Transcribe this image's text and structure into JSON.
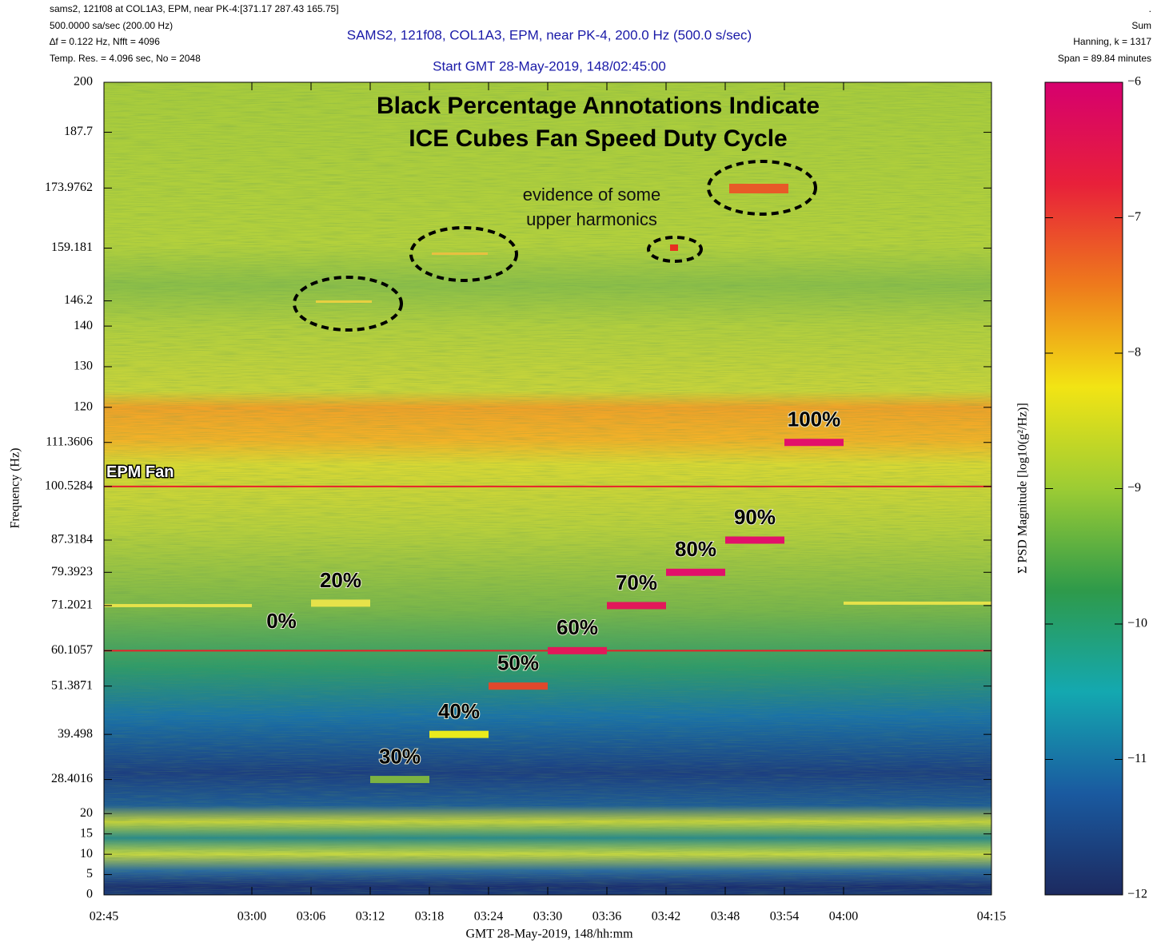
{
  "chart_data": {
    "type": "spectrogram",
    "header_left": [
      "sams2, 121f08 at COL1A3, EPM, near PK-4:[371.17 287.43 165.75]",
      "500.0000 sa/sec (200.00 Hz)",
      "∆f = 0.122 Hz,  Nfft = 4096",
      "Temp. Res. = 4.096 sec, No = 2048"
    ],
    "title": "SAMS2, 121f08, COL1A3, EPM, near PK-4, 200.0 Hz (500.0 s/sec)",
    "subtitle": "Start GMT 28-May-2019, 148/02:45:00",
    "header_right": [
      ".",
      "Sum",
      "Hanning, k = 1317",
      "Span = 89.84 minutes"
    ],
    "xlabel": "GMT 28-May-2019, 148/hh:mm",
    "ylabel": "Frequency (Hz)",
    "xlim": [
      165,
      255
    ],
    "xticks": [
      {
        "value": 165,
        "label": "02:45"
      },
      {
        "value": 180,
        "label": "03:00"
      },
      {
        "value": 186,
        "label": "03:06"
      },
      {
        "value": 192,
        "label": "03:12"
      },
      {
        "value": 198,
        "label": "03:18"
      },
      {
        "value": 204,
        "label": "03:24"
      },
      {
        "value": 210,
        "label": "03:30"
      },
      {
        "value": 216,
        "label": "03:36"
      },
      {
        "value": 222,
        "label": "03:42"
      },
      {
        "value": 228,
        "label": "03:48"
      },
      {
        "value": 234,
        "label": "03:54"
      },
      {
        "value": 240,
        "label": "04:00"
      },
      {
        "value": 255,
        "label": "04:15"
      }
    ],
    "ylim": [
      0,
      200
    ],
    "yticks": [
      0,
      5,
      10,
      15,
      20,
      28.4016,
      39.498,
      51.3871,
      60.1057,
      71.2021,
      79.3923,
      87.3184,
      100.5284,
      111.3606,
      120,
      130,
      140,
      146.2,
      159.181,
      173.9762,
      187.7,
      200
    ],
    "fan_lines": [
      100.5284,
      60.1057
    ],
    "fan_label": "EPM Fan",
    "annotations": [
      "Black Percentage Annotations Indicate",
      "ICE Cubes Fan Speed Duty Cycle",
      "evidence of some",
      "upper harmonics"
    ],
    "steps": [
      {
        "start": 165,
        "end": 180,
        "freq": 71.2021,
        "label": null,
        "color": "#e6e24a"
      },
      {
        "start": 180,
        "end": 186,
        "freq": null,
        "label": "0%",
        "color": null
      },
      {
        "start": 186,
        "end": 192,
        "freq": 71.8,
        "label": "20%",
        "color": "#e6e24a"
      },
      {
        "start": 192,
        "end": 198,
        "freq": 28.4016,
        "label": "30%",
        "color": "#7cb342"
      },
      {
        "start": 198,
        "end": 204,
        "freq": 39.498,
        "label": "40%",
        "color": "#eaea1c"
      },
      {
        "start": 204,
        "end": 210,
        "freq": 51.3871,
        "label": "50%",
        "color": "#e0482c"
      },
      {
        "start": 210,
        "end": 216,
        "freq": 60.1057,
        "label": "60%",
        "color": "#e2185a"
      },
      {
        "start": 216,
        "end": 222,
        "freq": 71.2021,
        "label": "70%",
        "color": "#e2185a"
      },
      {
        "start": 222,
        "end": 228,
        "freq": 79.3923,
        "label": "80%",
        "color": "#e2106a"
      },
      {
        "start": 228,
        "end": 234,
        "freq": 87.3184,
        "label": "90%",
        "color": "#e2106a"
      },
      {
        "start": 234,
        "end": 240,
        "freq": 111.3606,
        "label": "100%",
        "color": "#e2106a"
      },
      {
        "start": 240,
        "end": 255,
        "freq": 71.8,
        "label": null,
        "color": "#e6e24a"
      }
    ],
    "colorbar": {
      "label": "Σ PSD Magnitude [log10(g²/Hz)]",
      "lim": [
        -12,
        -6
      ],
      "ticks": [
        {
          "value": -6,
          "label": "−6"
        },
        {
          "value": -7,
          "label": "−7"
        },
        {
          "value": -8,
          "label": "−8"
        },
        {
          "value": -9,
          "label": "−9"
        },
        {
          "value": -10,
          "label": "−10"
        },
        {
          "value": -11,
          "label": "−11"
        },
        {
          "value": -12,
          "label": "−12"
        }
      ],
      "colors": [
        "#d6006e",
        "#e8203a",
        "#ee7a1c",
        "#f2e414",
        "#9ccc34",
        "#2e9a4a",
        "#14a8b0",
        "#1a5aa0",
        "#1c2a60"
      ]
    }
  }
}
